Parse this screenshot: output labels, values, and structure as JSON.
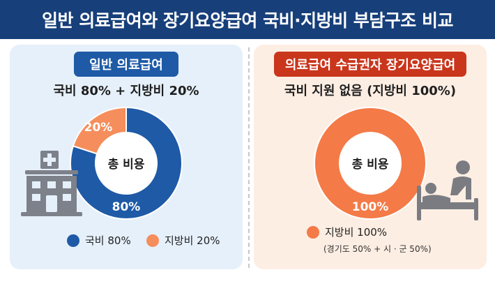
{
  "title": "일반 의료급여와 장기요양급여 국비·지방비 부담구조 비교",
  "colors": {
    "header": "#173f7a",
    "national": "#1e5aa6",
    "local": "#f58e5c",
    "right_local": "#f47a47",
    "left_panel": "#e6f0fa",
    "right_panel": "#fdeee3"
  },
  "chart_data": [
    {
      "type": "pie",
      "label": "일반 의료급여",
      "subtitle": "국비 80% + 지방비 20%",
      "center_label": "총 비용",
      "slices": [
        {
          "name": "국비",
          "value": 80,
          "label": "80%"
        },
        {
          "name": "지방비",
          "value": 20,
          "label": "20%"
        }
      ],
      "legend": [
        {
          "name": "국비 80%",
          "color": "#1e5aa6"
        },
        {
          "name": "지방비 20%",
          "color": "#f58e5c"
        }
      ]
    },
    {
      "type": "pie",
      "label": "의료급여 수급권자 장기요양급여",
      "subtitle": "국비 지원 없음 (지방비 100%)",
      "center_label": "총 비용",
      "slices": [
        {
          "name": "지방비",
          "value": 100,
          "label": "100%"
        }
      ],
      "legend": [
        {
          "name": "지방비 100%",
          "color": "#f47a47"
        }
      ],
      "note": "(경기도 50% + 시 · 군 50%)"
    }
  ],
  "icons": [
    "hospital-icon",
    "caregiver-bed-icon"
  ]
}
